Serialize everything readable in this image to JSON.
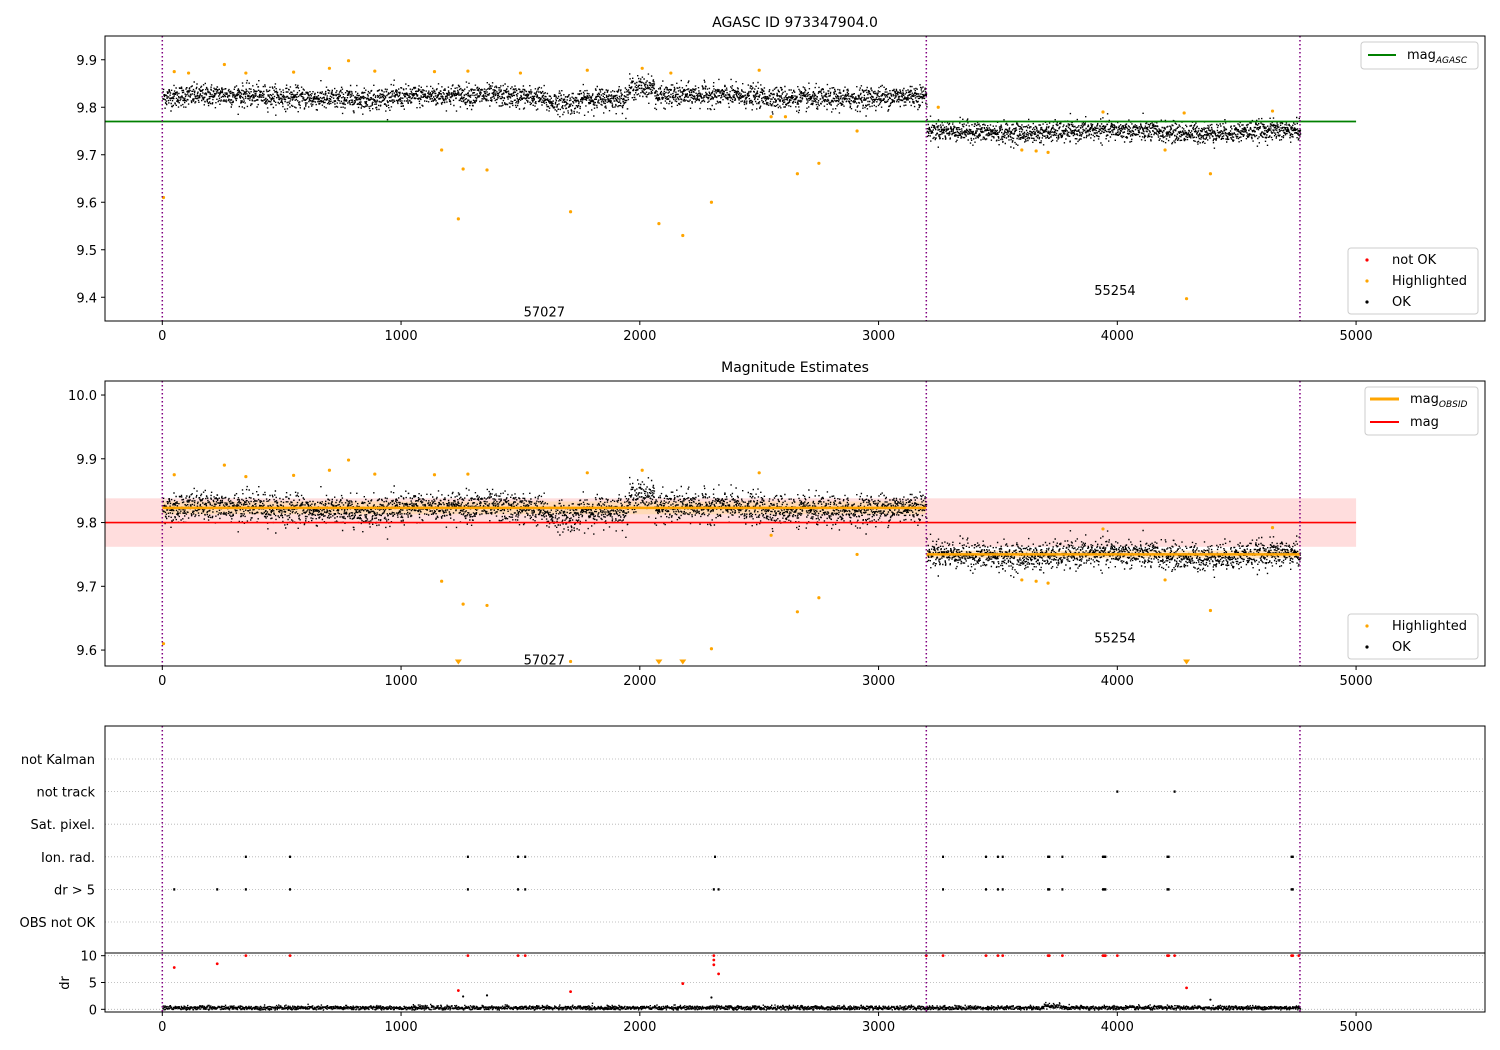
{
  "colors": {
    "ok": "#000000",
    "highlighted": "#ffa500",
    "not_ok": "#ff0000",
    "mag_agasc": "#008000",
    "mag_line": "#ff0000",
    "mag_band": "#ffdddd",
    "mag_obsid": "#ffa500",
    "obs_boundary": "#800080",
    "grid": "#b0b0b0"
  },
  "chart_data": [
    {
      "type": "scatter",
      "title": "AGASC ID 973347904.0",
      "xlim": [
        -240,
        5540
      ],
      "ylim": [
        9.35,
        9.95
      ],
      "xticks": [
        0,
        1000,
        2000,
        3000,
        4000,
        5000
      ],
      "yticks": [
        9.4,
        9.5,
        9.6,
        9.7,
        9.8,
        9.9
      ],
      "grid": false,
      "obs_boundaries": [
        0,
        3200,
        4765
      ],
      "observations": [
        {
          "label": "57027",
          "x": 1600,
          "y": 9.37,
          "mean": 9.823,
          "start": 0,
          "end": 3200
        },
        {
          "label": "55254",
          "x": 3990,
          "y": 9.415,
          "mean": 9.75,
          "start": 3200,
          "end": 4765
        }
      ],
      "reference_lines": [
        {
          "name": "mag_AGASC",
          "y": 9.77,
          "x": [
            -240,
            5000
          ]
        }
      ],
      "highlighted_outliers": [
        {
          "x": 5,
          "y": 9.61
        },
        {
          "x": 1170,
          "y": 9.71
        },
        {
          "x": 1240,
          "y": 9.565
        },
        {
          "x": 1260,
          "y": 9.67
        },
        {
          "x": 1360,
          "y": 9.668
        },
        {
          "x": 1710,
          "y": 9.58
        },
        {
          "x": 2080,
          "y": 9.555
        },
        {
          "x": 2180,
          "y": 9.53
        },
        {
          "x": 2300,
          "y": 9.6
        },
        {
          "x": 2660,
          "y": 9.66
        },
        {
          "x": 2750,
          "y": 9.682
        },
        {
          "x": 2910,
          "y": 9.75
        },
        {
          "x": 3600,
          "y": 9.71
        },
        {
          "x": 3660,
          "y": 9.708
        },
        {
          "x": 3710,
          "y": 9.705
        },
        {
          "x": 4200,
          "y": 9.71
        },
        {
          "x": 4290,
          "y": 9.397
        },
        {
          "x": 4390,
          "y": 9.66
        },
        {
          "x": 50,
          "y": 9.875
        },
        {
          "x": 110,
          "y": 9.872
        },
        {
          "x": 260,
          "y": 9.89
        },
        {
          "x": 350,
          "y": 9.872
        },
        {
          "x": 550,
          "y": 9.874
        },
        {
          "x": 700,
          "y": 9.882
        },
        {
          "x": 780,
          "y": 9.898
        },
        {
          "x": 890,
          "y": 9.876
        },
        {
          "x": 1140,
          "y": 9.875
        },
        {
          "x": 1280,
          "y": 9.876
        },
        {
          "x": 1500,
          "y": 9.872
        },
        {
          "x": 1780,
          "y": 9.878
        },
        {
          "x": 2010,
          "y": 9.882
        },
        {
          "x": 2130,
          "y": 9.872
        },
        {
          "x": 2500,
          "y": 9.878
        },
        {
          "x": 2550,
          "y": 9.78
        },
        {
          "x": 2610,
          "y": 9.78
        },
        {
          "x": 3250,
          "y": 9.8
        },
        {
          "x": 3940,
          "y": 9.79
        },
        {
          "x": 4280,
          "y": 9.788
        },
        {
          "x": 4650,
          "y": 9.792
        }
      ],
      "legends": [
        {
          "position": "upper right",
          "entries": [
            "mag_AGASC"
          ]
        },
        {
          "position": "lower right",
          "entries": [
            "not OK",
            "Highlighted",
            "OK"
          ]
        }
      ]
    },
    {
      "type": "scatter",
      "title": "Magnitude Estimates",
      "xlim": [
        -240,
        5540
      ],
      "ylim": [
        9.575,
        10.022
      ],
      "xticks": [
        0,
        1000,
        2000,
        3000,
        4000,
        5000
      ],
      "yticks": [
        9.6,
        9.7,
        9.8,
        9.9,
        10.0
      ],
      "grid": false,
      "obs_boundaries": [
        0,
        3200,
        4765
      ],
      "observations": [
        {
          "label": "57027",
          "x": 1600,
          "y": 9.585,
          "mean": 9.823,
          "start": 0,
          "end": 3200
        },
        {
          "label": "55254",
          "x": 3990,
          "y": 9.62,
          "mean": 9.75,
          "start": 3200,
          "end": 4765
        }
      ],
      "mag": {
        "value": 9.8,
        "band": [
          9.762,
          9.838
        ],
        "x": [
          -240,
          5000
        ]
      },
      "mag_obsid": [
        {
          "value": 9.823,
          "band": [
            9.813,
            9.833
          ],
          "x": [
            0,
            3200
          ]
        },
        {
          "value": 9.75,
          "band": [
            9.744,
            9.756
          ],
          "x": [
            3200,
            4765
          ]
        }
      ],
      "highlighted_outliers": [
        {
          "x": 5,
          "y": 9.61
        },
        {
          "x": 1170,
          "y": 9.708
        },
        {
          "x": 1260,
          "y": 9.672
        },
        {
          "x": 1360,
          "y": 9.67
        },
        {
          "x": 1710,
          "y": 9.582
        },
        {
          "x": 2300,
          "y": 9.602
        },
        {
          "x": 2660,
          "y": 9.66
        },
        {
          "x": 2750,
          "y": 9.682
        },
        {
          "x": 2910,
          "y": 9.75
        },
        {
          "x": 3600,
          "y": 9.71
        },
        {
          "x": 3660,
          "y": 9.708
        },
        {
          "x": 3710,
          "y": 9.705
        },
        {
          "x": 4200,
          "y": 9.71
        },
        {
          "x": 4390,
          "y": 9.662
        },
        {
          "x": 50,
          "y": 9.875
        },
        {
          "x": 260,
          "y": 9.89
        },
        {
          "x": 350,
          "y": 9.872
        },
        {
          "x": 550,
          "y": 9.874
        },
        {
          "x": 700,
          "y": 9.882
        },
        {
          "x": 780,
          "y": 9.898
        },
        {
          "x": 890,
          "y": 9.876
        },
        {
          "x": 1140,
          "y": 9.875
        },
        {
          "x": 1280,
          "y": 9.876
        },
        {
          "x": 1780,
          "y": 9.878
        },
        {
          "x": 2010,
          "y": 9.882
        },
        {
          "x": 2500,
          "y": 9.878
        },
        {
          "x": 2550,
          "y": 9.78
        },
        {
          "x": 3940,
          "y": 9.79
        },
        {
          "x": 4650,
          "y": 9.792
        }
      ],
      "below_range_markers": [
        1240,
        2080,
        2180,
        4290
      ],
      "legends": [
        {
          "position": "upper right",
          "entries": [
            "mag_OBSID",
            "mag"
          ]
        },
        {
          "position": "lower right",
          "entries": [
            "Highlighted",
            "OK"
          ]
        }
      ]
    },
    {
      "type": "scatter",
      "title": "",
      "xlim": [
        -240,
        5540
      ],
      "xticks": [
        0,
        1000,
        2000,
        3000,
        4000,
        5000
      ],
      "flag_categories": [
        "not Kalman",
        "not track",
        "Sat. pixel.",
        "Ion. rad.",
        "dr > 5",
        "OBS not OK"
      ],
      "flags": {
        "not track": [
          4000,
          4240
        ],
        "Ion. rad.": [
          350,
          535,
          1280,
          1490,
          1520,
          2315,
          3270,
          3450,
          3500,
          3520,
          3710,
          3715,
          3770,
          3940,
          3945,
          3950,
          4210,
          4215,
          4730,
          4735
        ],
        "dr > 5": [
          50,
          230,
          350,
          535,
          1280,
          1490,
          1520,
          2310,
          2330,
          3270,
          3450,
          3500,
          3520,
          3710,
          3715,
          3770,
          3940,
          3945,
          3950,
          4210,
          4215,
          4730,
          4735
        ]
      },
      "dr": {
        "ylabel": "dr",
        "ylim": [
          -0.5,
          10.5
        ],
        "yticks": [
          0,
          5,
          10
        ],
        "typical": 0.4,
        "not_ok_points": [
          {
            "x": 50,
            "y": 7.8
          },
          {
            "x": 230,
            "y": 8.5
          },
          {
            "x": 350,
            "y": 10
          },
          {
            "x": 535,
            "y": 10
          },
          {
            "x": 1280,
            "y": 10
          },
          {
            "x": 1490,
            "y": 10
          },
          {
            "x": 1520,
            "y": 10
          },
          {
            "x": 2310,
            "y": 10
          },
          {
            "x": 2310,
            "y": 9.2
          },
          {
            "x": 2310,
            "y": 8.3
          },
          {
            "x": 2330,
            "y": 6.6
          },
          {
            "x": 3270,
            "y": 10
          },
          {
            "x": 3450,
            "y": 10
          },
          {
            "x": 3500,
            "y": 10
          },
          {
            "x": 3520,
            "y": 10
          },
          {
            "x": 3710,
            "y": 10
          },
          {
            "x": 3715,
            "y": 10
          },
          {
            "x": 3770,
            "y": 10
          },
          {
            "x": 3940,
            "y": 10
          },
          {
            "x": 3945,
            "y": 10
          },
          {
            "x": 3950,
            "y": 10
          },
          {
            "x": 4000,
            "y": 10
          },
          {
            "x": 4210,
            "y": 10
          },
          {
            "x": 4215,
            "y": 10
          },
          {
            "x": 4240,
            "y": 10
          },
          {
            "x": 4730,
            "y": 10
          },
          {
            "x": 4735,
            "y": 10
          },
          {
            "x": 4760,
            "y": 10
          },
          {
            "x": 3200,
            "y": 10
          },
          {
            "x": 1240,
            "y": 3.5
          },
          {
            "x": 1710,
            "y": 3.3
          },
          {
            "x": 2180,
            "y": 4.8
          },
          {
            "x": 4290,
            "y": 4.0
          }
        ],
        "outliers_ok": [
          {
            "x": 1260,
            "y": 2.4
          },
          {
            "x": 1360,
            "y": 2.6
          },
          {
            "x": 2300,
            "y": 2.2
          },
          {
            "x": 4390,
            "y": 1.8
          }
        ]
      }
    }
  ]
}
